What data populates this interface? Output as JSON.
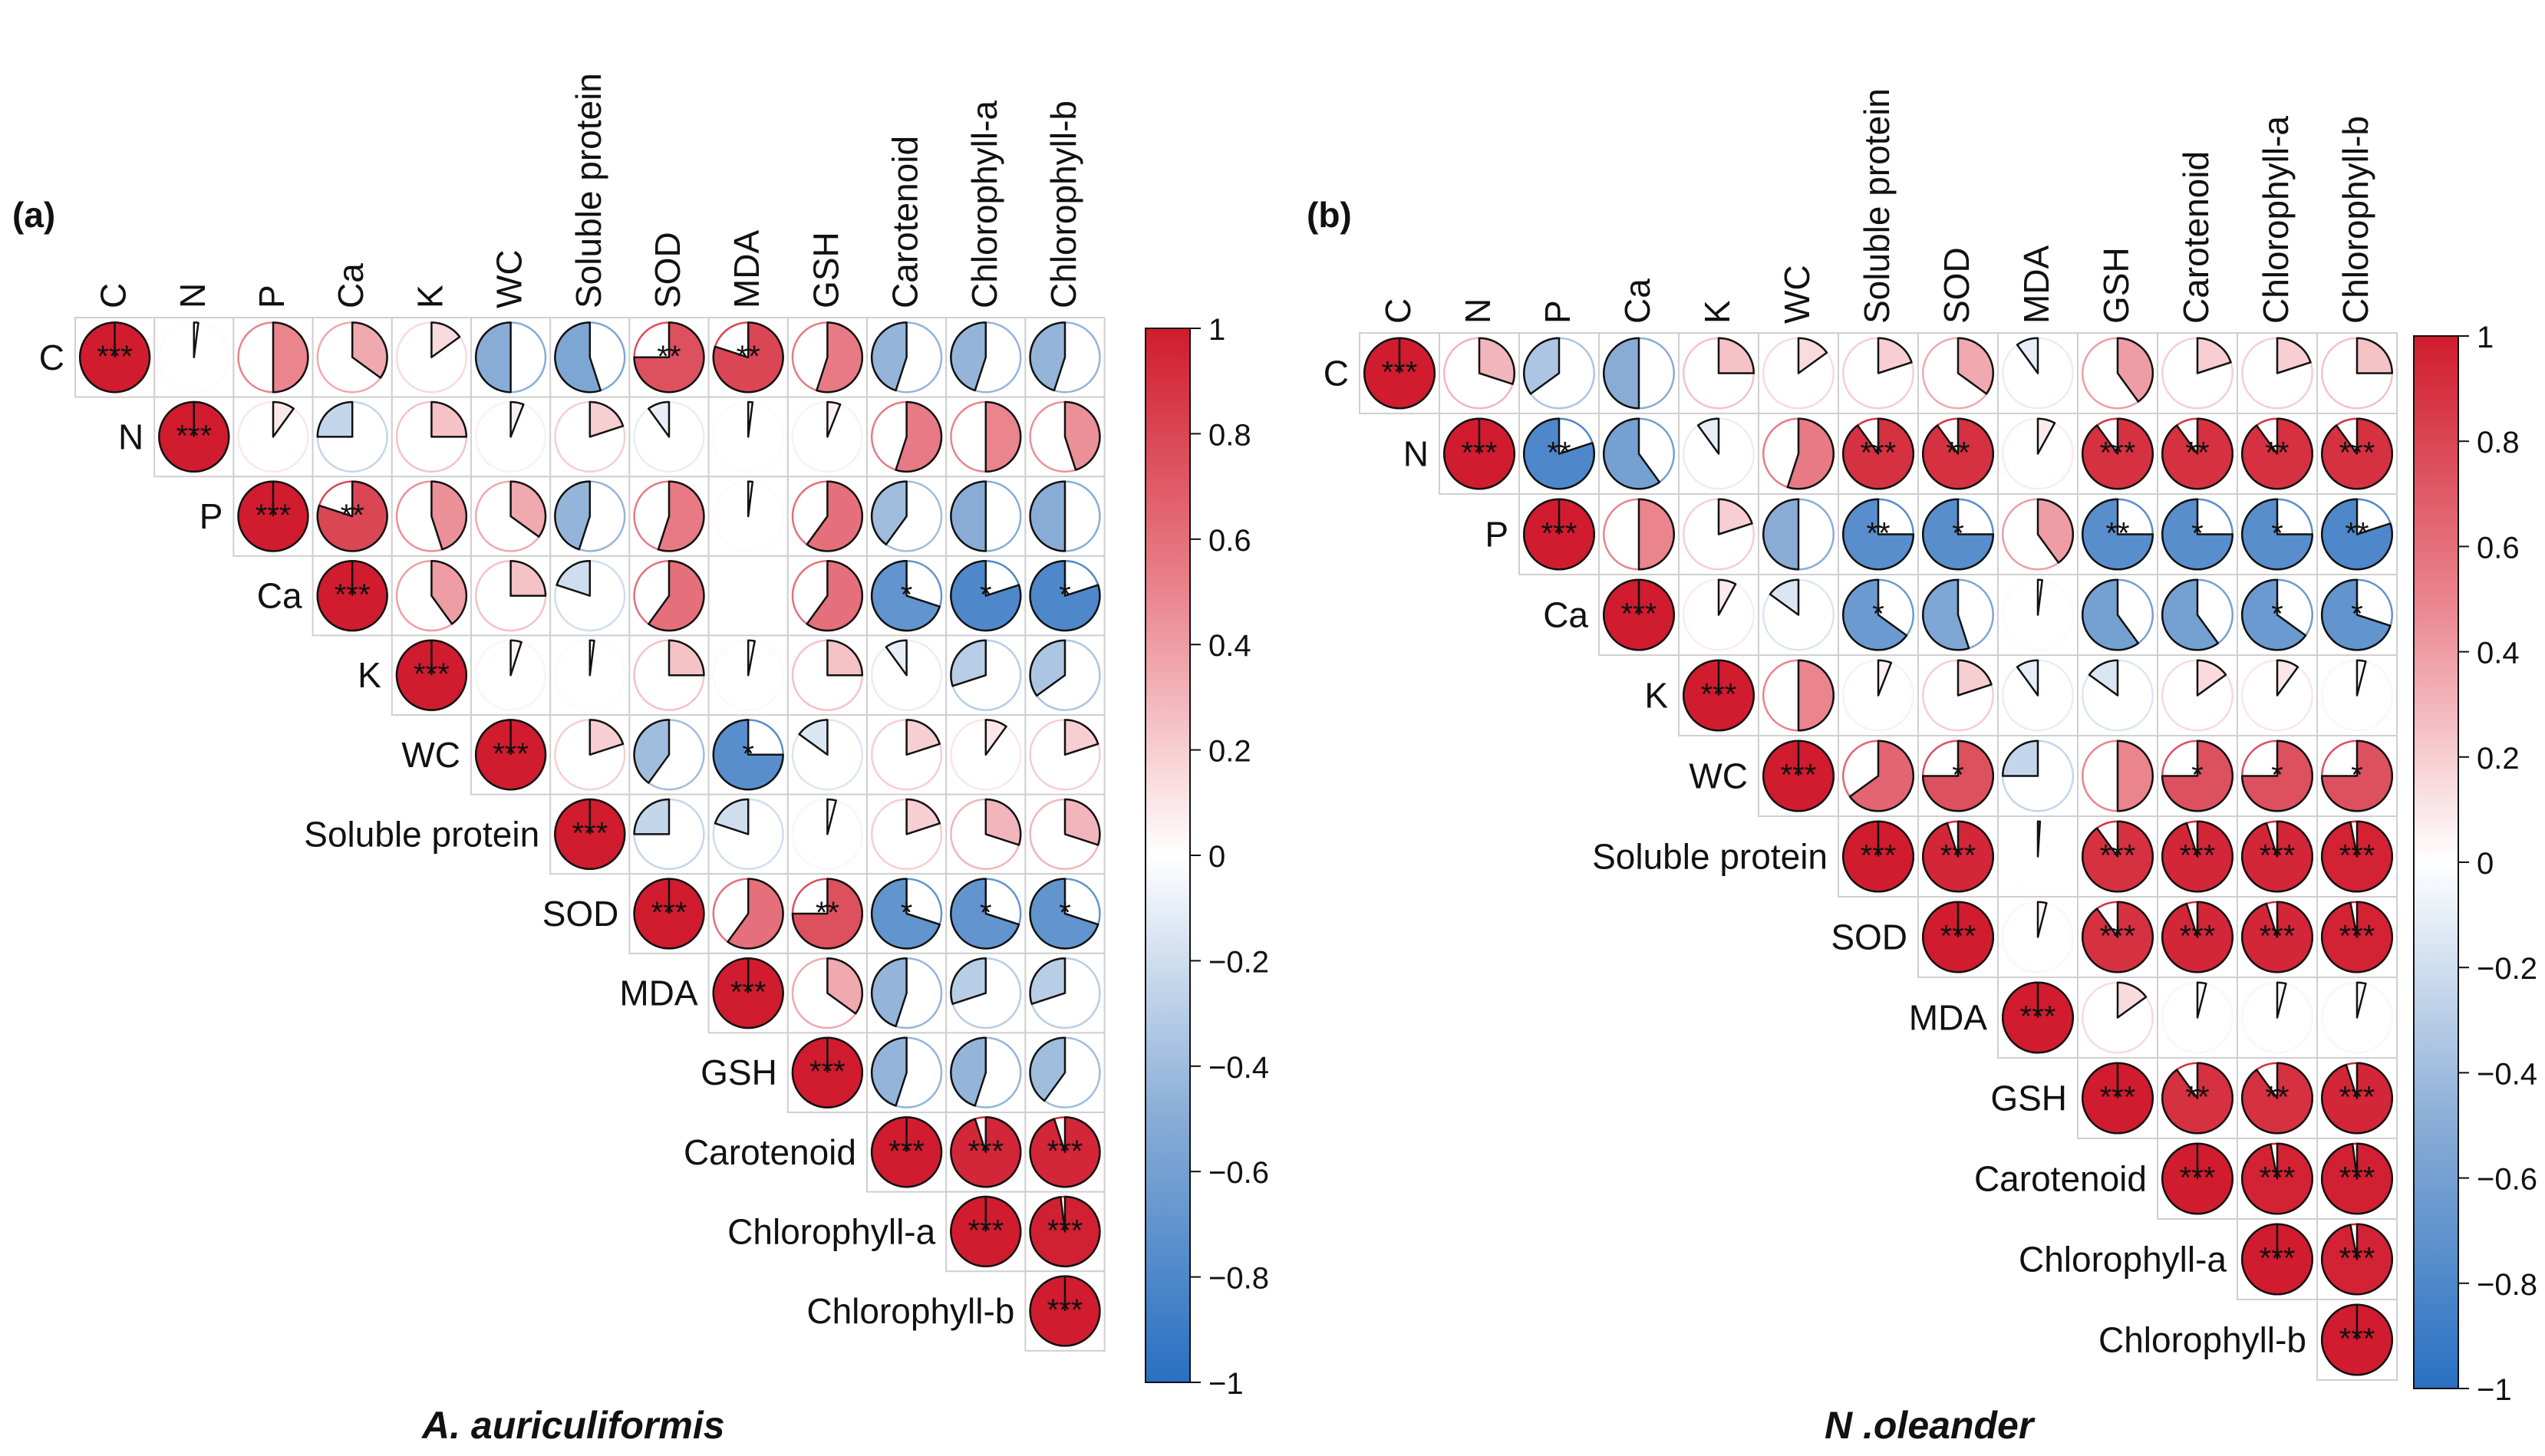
{
  "chart_data": [
    {
      "type": "heatmap",
      "subtype": "correlation-pie-upper-triangle",
      "panel_label": "(a)",
      "title": "A. auriculiformis",
      "variables": [
        "C",
        "N",
        "P",
        "Ca",
        "K",
        "WC",
        "Soluble protein",
        "SOD",
        "MDA",
        "GSH",
        "Carotenoid",
        "Chlorophyll-a",
        "Chlorophyll-b"
      ],
      "colorbar": {
        "min": -1,
        "max": 1,
        "ticks": [
          "1",
          "0.8",
          "0.6",
          "0.4",
          "0.2",
          "0",
          "−0.2",
          "−0.4",
          "−0.6",
          "−0.8",
          "−1"
        ]
      },
      "matrix": [
        [
          1,
          0.02,
          0.5,
          0.35,
          0.15,
          -0.5,
          -0.55,
          0.75,
          0.8,
          0.55,
          -0.45,
          -0.45,
          -0.45
        ],
        [
          null,
          1,
          0.1,
          -0.25,
          0.25,
          0.06,
          0.2,
          -0.1,
          0.02,
          0.06,
          0.55,
          0.5,
          0.45
        ],
        [
          null,
          null,
          1,
          0.8,
          0.45,
          0.35,
          -0.45,
          0.55,
          0.02,
          0.6,
          -0.4,
          -0.5,
          -0.5
        ],
        [
          null,
          null,
          null,
          1,
          0.4,
          0.25,
          -0.2,
          0.6,
          0.0,
          0.6,
          -0.7,
          -0.8,
          -0.8
        ],
        [
          null,
          null,
          null,
          null,
          1,
          0.05,
          0.02,
          0.25,
          0.03,
          0.25,
          -0.1,
          -0.3,
          -0.35
        ],
        [
          null,
          null,
          null,
          null,
          null,
          1,
          0.2,
          -0.4,
          -0.75,
          -0.15,
          0.2,
          0.1,
          0.2
        ],
        [
          null,
          null,
          null,
          null,
          null,
          null,
          1,
          -0.25,
          -0.2,
          0.04,
          0.2,
          0.3,
          0.3
        ],
        [
          null,
          null,
          null,
          null,
          null,
          null,
          null,
          1,
          0.6,
          0.75,
          -0.7,
          -0.7,
          -0.7
        ],
        [
          null,
          null,
          null,
          null,
          null,
          null,
          null,
          null,
          1,
          0.35,
          -0.45,
          -0.3,
          -0.3
        ],
        [
          null,
          null,
          null,
          null,
          null,
          null,
          null,
          null,
          null,
          1,
          -0.45,
          -0.45,
          -0.4
        ],
        [
          null,
          null,
          null,
          null,
          null,
          null,
          null,
          null,
          null,
          null,
          1,
          0.95,
          0.95
        ],
        [
          null,
          null,
          null,
          null,
          null,
          null,
          null,
          null,
          null,
          null,
          null,
          1,
          0.98
        ],
        [
          null,
          null,
          null,
          null,
          null,
          null,
          null,
          null,
          null,
          null,
          null,
          null,
          1
        ]
      ],
      "significance": [
        [
          "***",
          "",
          "",
          "",
          "",
          "",
          "",
          "**",
          "**",
          "",
          "",
          "",
          ""
        ],
        [
          "",
          "***",
          "",
          "",
          "",
          "",
          "",
          "",
          "",
          "",
          "",
          "",
          ""
        ],
        [
          "",
          "",
          "***",
          "**",
          "",
          "",
          "",
          "",
          "",
          "",
          "",
          "",
          ""
        ],
        [
          "",
          "",
          "",
          "***",
          "",
          "",
          "",
          "",
          "",
          "",
          "*",
          "*",
          "*"
        ],
        [
          "",
          "",
          "",
          "",
          "***",
          "",
          "",
          "",
          "",
          "",
          "",
          "",
          ""
        ],
        [
          "",
          "",
          "",
          "",
          "",
          "***",
          "",
          "",
          "*",
          "",
          "",
          "",
          ""
        ],
        [
          "",
          "",
          "",
          "",
          "",
          "",
          "***",
          "",
          "",
          "",
          "",
          "",
          ""
        ],
        [
          "",
          "",
          "",
          "",
          "",
          "",
          "",
          "***",
          "",
          "**",
          "*",
          "*",
          "*"
        ],
        [
          "",
          "",
          "",
          "",
          "",
          "",
          "",
          "",
          "***",
          "",
          "",
          "",
          ""
        ],
        [
          "",
          "",
          "",
          "",
          "",
          "",
          "",
          "",
          "",
          "***",
          "",
          "",
          ""
        ],
        [
          "",
          "",
          "",
          "",
          "",
          "",
          "",
          "",
          "",
          "",
          "***",
          "***",
          "***"
        ],
        [
          "",
          "",
          "",
          "",
          "",
          "",
          "",
          "",
          "",
          "",
          "",
          "***",
          "***"
        ],
        [
          "",
          "",
          "",
          "",
          "",
          "",
          "",
          "",
          "",
          "",
          "",
          "",
          "***"
        ]
      ]
    },
    {
      "type": "heatmap",
      "subtype": "correlation-pie-upper-triangle",
      "panel_label": "(b)",
      "title": "N .oleander",
      "variables": [
        "C",
        "N",
        "P",
        "Ca",
        "K",
        "WC",
        "Soluble protein",
        "SOD",
        "MDA",
        "GSH",
        "Carotenoid",
        "Chlorophyll-a",
        "Chlorophyll-b"
      ],
      "colorbar": {
        "min": -1,
        "max": 1,
        "ticks": [
          "1",
          "0.8",
          "0.6",
          "0.4",
          "0.2",
          "0",
          "−0.2",
          "−0.4",
          "−0.6",
          "−0.8",
          "−1"
        ]
      },
      "matrix": [
        [
          1,
          0.3,
          -0.35,
          -0.5,
          0.25,
          0.15,
          0.2,
          0.35,
          -0.1,
          0.4,
          0.2,
          0.2,
          0.25
        ],
        [
          null,
          1,
          -0.8,
          -0.6,
          -0.1,
          0.55,
          0.9,
          0.9,
          0.08,
          0.9,
          0.9,
          0.9,
          0.9
        ],
        [
          null,
          null,
          1,
          0.5,
          0.2,
          -0.5,
          -0.75,
          -0.75,
          0.4,
          -0.75,
          -0.75,
          -0.75,
          -0.8
        ],
        [
          null,
          null,
          null,
          1,
          0.08,
          -0.15,
          -0.65,
          -0.55,
          0.02,
          -0.6,
          -0.6,
          -0.65,
          -0.7
        ],
        [
          null,
          null,
          null,
          null,
          1,
          0.5,
          0.06,
          0.2,
          -0.1,
          -0.15,
          0.15,
          0.1,
          0.04
        ],
        [
          null,
          null,
          null,
          null,
          null,
          1,
          0.65,
          0.75,
          -0.25,
          0.5,
          0.75,
          0.75,
          0.75
        ],
        [
          null,
          null,
          null,
          null,
          null,
          null,
          1,
          0.95,
          0.01,
          0.9,
          0.95,
          0.95,
          0.97
        ],
        [
          null,
          null,
          null,
          null,
          null,
          null,
          null,
          1,
          0.04,
          0.9,
          0.95,
          0.95,
          0.97
        ],
        [
          null,
          null,
          null,
          null,
          null,
          null,
          null,
          null,
          1,
          0.15,
          0.04,
          0.04,
          0.04
        ],
        [
          null,
          null,
          null,
          null,
          null,
          null,
          null,
          null,
          null,
          1,
          0.9,
          0.9,
          0.95
        ],
        [
          null,
          null,
          null,
          null,
          null,
          null,
          null,
          null,
          null,
          null,
          1,
          0.97,
          0.98
        ],
        [
          null,
          null,
          null,
          null,
          null,
          null,
          null,
          null,
          null,
          null,
          null,
          1,
          0.97
        ],
        [
          null,
          null,
          null,
          null,
          null,
          null,
          null,
          null,
          null,
          null,
          null,
          null,
          1
        ]
      ],
      "significance": [
        [
          "***",
          "",
          "",
          "",
          "",
          "",
          "",
          "",
          "",
          "",
          "",
          "",
          ""
        ],
        [
          "",
          "***",
          "**",
          "",
          "",
          "",
          "***",
          "**",
          "",
          "***",
          "**",
          "**",
          "***"
        ],
        [
          "",
          "",
          "***",
          "",
          "",
          "",
          "**",
          "*",
          "",
          "**",
          "*",
          "*",
          "**"
        ],
        [
          "",
          "",
          "",
          "***",
          "",
          "",
          "*",
          "",
          "",
          "",
          "",
          "*",
          "*"
        ],
        [
          "",
          "",
          "",
          "",
          "***",
          "",
          "",
          "",
          "",
          "",
          "",
          "",
          ""
        ],
        [
          "",
          "",
          "",
          "",
          "",
          "***",
          "",
          "*",
          "",
          "",
          "*",
          "*",
          "*"
        ],
        [
          "",
          "",
          "",
          "",
          "",
          "",
          "***",
          "***",
          "",
          "***",
          "***",
          "***",
          "***"
        ],
        [
          "",
          "",
          "",
          "",
          "",
          "",
          "",
          "***",
          "",
          "***",
          "***",
          "***",
          "***"
        ],
        [
          "",
          "",
          "",
          "",
          "",
          "",
          "",
          "",
          "***",
          "",
          "",
          "",
          ""
        ],
        [
          "",
          "",
          "",
          "",
          "",
          "",
          "",
          "",
          "",
          "***",
          "**",
          "**",
          "***"
        ],
        [
          "",
          "",
          "",
          "",
          "",
          "",
          "",
          "",
          "",
          "",
          "***",
          "***",
          "***"
        ],
        [
          "",
          "",
          "",
          "",
          "",
          "",
          "",
          "",
          "",
          "",
          "",
          "***",
          "***"
        ],
        [
          "",
          "",
          "",
          "",
          "",
          "",
          "",
          "",
          "",
          "",
          "",
          "",
          "***"
        ]
      ]
    }
  ]
}
